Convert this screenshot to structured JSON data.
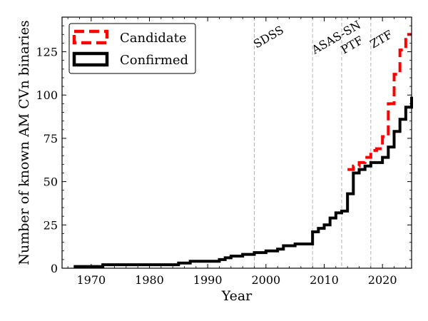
{
  "chart_data": {
    "type": "line",
    "step": true,
    "xlabel": "Year",
    "ylabel": "Number of known AM CVn binaries",
    "xlim": [
      1965,
      2025
    ],
    "ylim": [
      0,
      145
    ],
    "x_ticks": [
      1970,
      1980,
      1990,
      2000,
      2010,
      2020
    ],
    "y_ticks": [
      0,
      25,
      50,
      75,
      100,
      125
    ],
    "legend_position": "top-left",
    "series": [
      {
        "name": "Candidate",
        "color": "#ff0000",
        "style": "dashed",
        "x": [
          2014,
          2015,
          2016,
          2017,
          2018,
          2019,
          2020,
          2021,
          2022,
          2023,
          2024
        ],
        "y": [
          57,
          59,
          61,
          64,
          68,
          69,
          76,
          95,
          112,
          126,
          135
        ]
      },
      {
        "name": "Confirmed",
        "color": "#000000",
        "style": "solid",
        "x": [
          1967,
          1972,
          1985,
          1987,
          1992,
          1993,
          1994,
          1996,
          1998,
          2000,
          2002,
          2003,
          2005,
          2008,
          2009,
          2010,
          2011,
          2012,
          2013,
          2014,
          2015,
          2016,
          2017,
          2018,
          2020,
          2021,
          2022,
          2023,
          2024
        ],
        "y": [
          1,
          2,
          3,
          4,
          5,
          6,
          7,
          8,
          9,
          10,
          11,
          13,
          14,
          21,
          23,
          25,
          29,
          32,
          33,
          43,
          55,
          57,
          59,
          61,
          64,
          70,
          79,
          86,
          93
        ]
      }
    ],
    "final_confirmed": 99,
    "annotations": [
      {
        "label": "SDSS",
        "x": 1998
      },
      {
        "label": "ASAS-SN",
        "x": 2008
      },
      {
        "label": "PTF",
        "x": 2013
      },
      {
        "label": "ZTF",
        "x": 2018
      }
    ]
  }
}
